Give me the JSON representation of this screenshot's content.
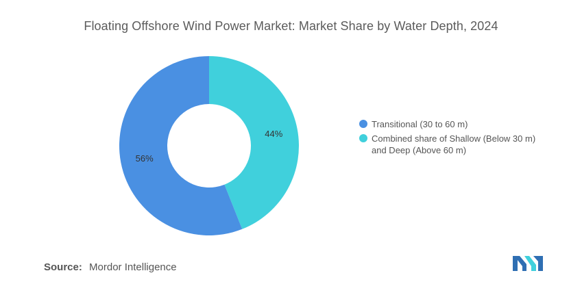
{
  "title": "Floating Offshore Wind Power Market: Market Share by Water Depth, 2024",
  "source": {
    "label": "Source:",
    "value": "Mordor Intelligence"
  },
  "logo": {
    "icon": "mordor-intelligence-logo-icon",
    "color": "#2f6fb3",
    "accent": "#40d0dc"
  },
  "chart_data": {
    "type": "pie",
    "subtype": "donut",
    "title": "Floating Offshore Wind Power Market: Market Share by Water Depth, 2024",
    "legend_position": "right",
    "series": [
      {
        "name": "Transitional (30 to 60 m)",
        "value": 56,
        "label": "56%",
        "color": "#4a90e2"
      },
      {
        "name": "Combined share of Shallow (Below 30 m) and Deep (Above 60 m)",
        "value": 44,
        "label": "44%",
        "color": "#40d0dc"
      }
    ]
  }
}
